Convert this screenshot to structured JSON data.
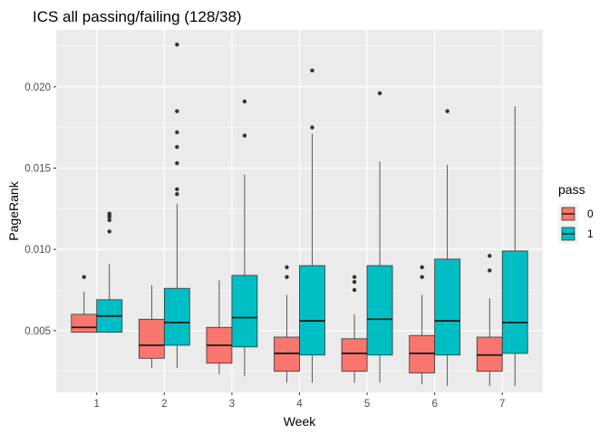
{
  "chart_data": {
    "type": "boxplot",
    "title": "ICS all passing/failing (128/38)",
    "xlabel": "Week",
    "ylabel": "PageRank",
    "categories": [
      "1",
      "2",
      "3",
      "4",
      "5",
      "6",
      "7"
    ],
    "ylim": [
      0.0012,
      0.0235
    ],
    "y_ticks": [
      0.005,
      0.01,
      0.015,
      0.02
    ],
    "y_tick_labels": [
      "0.005",
      "0.010",
      "0.015",
      "0.020"
    ],
    "grid": true,
    "legend": {
      "title": "pass",
      "position": "right",
      "entries": [
        {
          "label": "0",
          "color": "#F8766D"
        },
        {
          "label": "1",
          "color": "#00BFC4"
        }
      ]
    },
    "series": [
      {
        "name": "0",
        "color": "#F8766D",
        "boxes": [
          {
            "category": "1",
            "whisker_low": 0.0049,
            "q1": 0.0049,
            "median": 0.0052,
            "q3": 0.006,
            "whisker_high": 0.0074,
            "outliers": [
              0.0083
            ]
          },
          {
            "category": "2",
            "whisker_low": 0.0027,
            "q1": 0.0033,
            "median": 0.0041,
            "q3": 0.0057,
            "whisker_high": 0.0078,
            "outliers": []
          },
          {
            "category": "3",
            "whisker_low": 0.0023,
            "q1": 0.003,
            "median": 0.0041,
            "q3": 0.0052,
            "whisker_high": 0.0081,
            "outliers": []
          },
          {
            "category": "4",
            "whisker_low": 0.0018,
            "q1": 0.0025,
            "median": 0.0036,
            "q3": 0.0046,
            "whisker_high": 0.0072,
            "outliers": [
              0.0083,
              0.0089
            ]
          },
          {
            "category": "5",
            "whisker_low": 0.0018,
            "q1": 0.0025,
            "median": 0.0036,
            "q3": 0.0045,
            "whisker_high": 0.006,
            "outliers": [
              0.0075,
              0.008,
              0.0083
            ]
          },
          {
            "category": "6",
            "whisker_low": 0.0017,
            "q1": 0.0024,
            "median": 0.0036,
            "q3": 0.0047,
            "whisker_high": 0.0072,
            "outliers": [
              0.0083,
              0.0089
            ]
          },
          {
            "category": "7",
            "whisker_low": 0.0016,
            "q1": 0.0025,
            "median": 0.0035,
            "q3": 0.0046,
            "whisker_high": 0.007,
            "outliers": [
              0.0087,
              0.0096
            ]
          }
        ]
      },
      {
        "name": "1",
        "color": "#00BFC4",
        "boxes": [
          {
            "category": "1",
            "whisker_low": 0.0049,
            "q1": 0.0049,
            "median": 0.0059,
            "q3": 0.0069,
            "whisker_high": 0.0091,
            "outliers": [
              0.0111,
              0.0118,
              0.012,
              0.0121,
              0.0122
            ]
          },
          {
            "category": "2",
            "whisker_low": 0.0027,
            "q1": 0.0041,
            "median": 0.0055,
            "q3": 0.0076,
            "whisker_high": 0.0128,
            "outliers": [
              0.0134,
              0.0137,
              0.0153,
              0.0163,
              0.0172,
              0.0185,
              0.0226
            ]
          },
          {
            "category": "3",
            "whisker_low": 0.0022,
            "q1": 0.004,
            "median": 0.0058,
            "q3": 0.0084,
            "whisker_high": 0.0146,
            "outliers": [
              0.017,
              0.0191
            ]
          },
          {
            "category": "4",
            "whisker_low": 0.0018,
            "q1": 0.0035,
            "median": 0.0056,
            "q3": 0.009,
            "whisker_high": 0.0171,
            "outliers": [
              0.0175,
              0.021
            ]
          },
          {
            "category": "5",
            "whisker_low": 0.0018,
            "q1": 0.0035,
            "median": 0.0057,
            "q3": 0.009,
            "whisker_high": 0.0154,
            "outliers": [
              0.0196
            ]
          },
          {
            "category": "6",
            "whisker_low": 0.0016,
            "q1": 0.0035,
            "median": 0.0056,
            "q3": 0.0094,
            "whisker_high": 0.0152,
            "outliers": [
              0.0185
            ]
          },
          {
            "category": "7",
            "whisker_low": 0.0016,
            "q1": 0.0036,
            "median": 0.0055,
            "q3": 0.0099,
            "whisker_high": 0.0188,
            "outliers": []
          }
        ]
      }
    ]
  }
}
